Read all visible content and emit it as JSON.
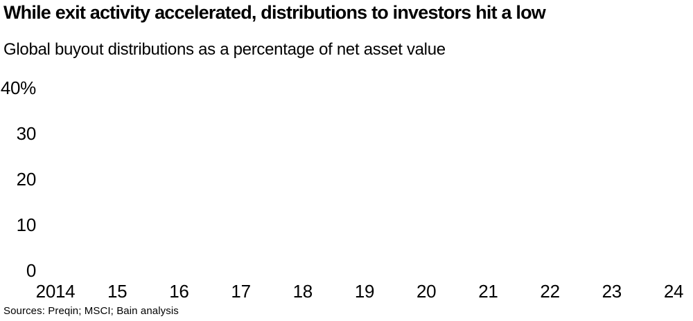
{
  "header": {
    "title": "While exit activity accelerated, distributions to investors hit a low",
    "subtitle": "Global buyout distributions as a percentage of net asset value"
  },
  "chart_data": {
    "type": "line",
    "title": "Global buyout distributions as a percentage of net asset value",
    "xlabel": "",
    "ylabel": "",
    "x_tick_labels": [
      "2014",
      "15",
      "16",
      "17",
      "18",
      "19",
      "20",
      "21",
      "22",
      "23",
      "24"
    ],
    "y_tick_labels": [
      "40%",
      "30",
      "20",
      "10",
      "0"
    ],
    "y_tick_values": [
      40,
      30,
      20,
      10,
      0
    ],
    "ylim": [
      0,
      40
    ],
    "y_unit": "%",
    "grid": false,
    "legend": false,
    "axis_lines": false,
    "series": [],
    "plot_area_empty": true
  },
  "footer": {
    "sources_label": "Sources: Preqin; MSCI; Bain analysis"
  },
  "colors": {
    "text": "#000000",
    "background": "#ffffff"
  }
}
